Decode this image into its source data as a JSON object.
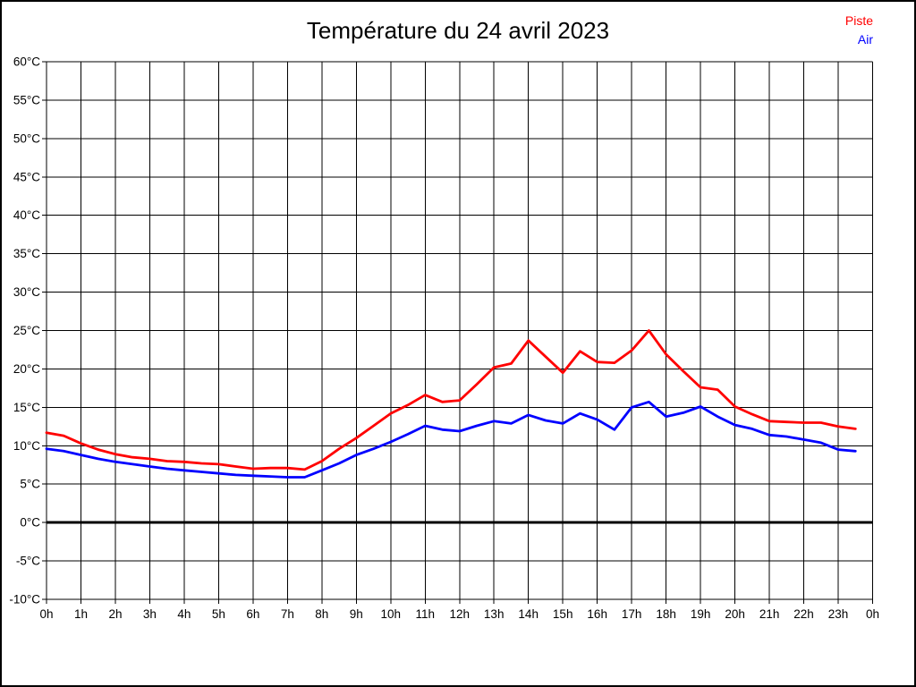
{
  "page": {
    "background": "#ffffff",
    "border_color": "#000000"
  },
  "chart_data": {
    "type": "line",
    "title": "Température du 24 avril 2023",
    "xlabel": "",
    "ylabel": "",
    "xlim": [
      0,
      24
    ],
    "ylim": [
      -10,
      60
    ],
    "grid": true,
    "grid_color": "#000000",
    "zero_line_value": 0,
    "zero_line_color": "#000000",
    "legend_position": "top-right",
    "x_tick_values": [
      0,
      1,
      2,
      3,
      4,
      5,
      6,
      7,
      8,
      9,
      10,
      11,
      12,
      13,
      14,
      15,
      16,
      17,
      18,
      19,
      20,
      21,
      22,
      23,
      24
    ],
    "x_tick_labels": [
      "0h",
      "1h",
      "2h",
      "3h",
      "4h",
      "5h",
      "6h",
      "7h",
      "8h",
      "9h",
      "10h",
      "11h",
      "12h",
      "13h",
      "14h",
      "15h",
      "16h",
      "17h",
      "18h",
      "19h",
      "20h",
      "21h",
      "22h",
      "23h",
      "0h"
    ],
    "y_tick_values": [
      -10,
      -5,
      0,
      5,
      10,
      15,
      20,
      25,
      30,
      35,
      40,
      45,
      50,
      55,
      60
    ],
    "y_tick_labels": [
      "-10°C",
      "-5°C",
      "0°C",
      "5°C",
      "10°C",
      "15°C",
      "20°C",
      "25°C",
      "30°C",
      "35°C",
      "40°C",
      "45°C",
      "50°C",
      "55°C",
      "60°C"
    ],
    "x": [
      0,
      0.5,
      1,
      1.5,
      2,
      2.5,
      3,
      3.5,
      4,
      4.5,
      5,
      5.5,
      6,
      6.5,
      7,
      7.5,
      8,
      8.5,
      9,
      9.5,
      10,
      10.5,
      11,
      11.5,
      12,
      12.5,
      13,
      13.5,
      14,
      14.5,
      15,
      15.5,
      16,
      16.5,
      17,
      17.5,
      18,
      18.5,
      19,
      19.5,
      20,
      20.5,
      21,
      21.5,
      22,
      22.5,
      23,
      23.5
    ],
    "series": [
      {
        "name": "Piste",
        "color": "#ff0000",
        "values": [
          11.7,
          11.3,
          10.3,
          9.5,
          8.9,
          8.5,
          8.3,
          8.0,
          7.9,
          7.7,
          7.6,
          7.3,
          7.0,
          7.1,
          7.1,
          6.9,
          8.0,
          9.6,
          11.0,
          12.6,
          14.2,
          15.3,
          16.6,
          15.7,
          15.9,
          18.0,
          20.2,
          20.7,
          23.7,
          21.6,
          19.5,
          22.3,
          20.9,
          20.8,
          22.4,
          25.0,
          21.9,
          19.7,
          17.6,
          17.3,
          15.1,
          14.1,
          13.2,
          13.1,
          13.0,
          13.0,
          12.5,
          12.2
        ]
      },
      {
        "name": "Air",
        "color": "#0000ff",
        "values": [
          9.6,
          9.3,
          8.8,
          8.3,
          7.9,
          7.6,
          7.3,
          7.0,
          6.8,
          6.6,
          6.4,
          6.2,
          6.1,
          6.0,
          5.9,
          5.9,
          6.8,
          7.7,
          8.8,
          9.6,
          10.5,
          11.5,
          12.6,
          12.1,
          11.9,
          12.6,
          13.2,
          12.9,
          14.0,
          13.3,
          12.9,
          14.2,
          13.4,
          12.1,
          15.0,
          15.7,
          13.8,
          14.3,
          15.1,
          13.8,
          12.7,
          12.2,
          11.4,
          11.2,
          10.8,
          10.4,
          9.5,
          9.3
        ]
      }
    ]
  }
}
